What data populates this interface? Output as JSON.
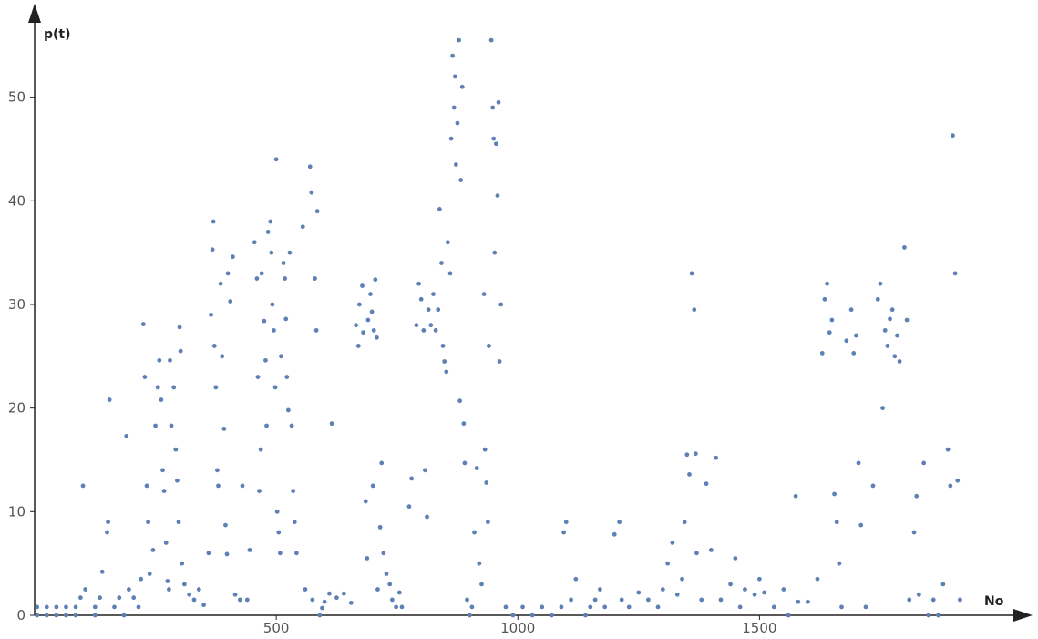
{
  "chart_data": {
    "type": "scatter",
    "x_label": "No",
    "y_label": "p(t)",
    "color": "#5e81b5",
    "xlim": [
      0,
      2050
    ],
    "ylim": [
      0,
      58.5
    ],
    "xticks": [
      500,
      1000,
      1500
    ],
    "yticks": [
      0,
      10,
      20,
      30,
      40,
      50
    ],
    "x": [
      5,
      5,
      25,
      25,
      45,
      45,
      65,
      65,
      85,
      85,
      95,
      100,
      105,
      125,
      125,
      135,
      140,
      150,
      152,
      155,
      165,
      175,
      185,
      190,
      195,
      205,
      215,
      220,
      225,
      228,
      232,
      235,
      238,
      245,
      250,
      255,
      258,
      262,
      265,
      268,
      272,
      275,
      278,
      280,
      283,
      288,
      292,
      295,
      298,
      300,
      302,
      305,
      310,
      320,
      330,
      340,
      350,
      360,
      365,
      368,
      370,
      372,
      375,
      378,
      380,
      385,
      388,
      392,
      395,
      398,
      400,
      405,
      410,
      415,
      425,
      430,
      440,
      445,
      455,
      460,
      462,
      465,
      468,
      470,
      475,
      478,
      480,
      483,
      488,
      490,
      492,
      495,
      498,
      500,
      502,
      505,
      508,
      510,
      515,
      518,
      520,
      522,
      525,
      528,
      532,
      535,
      538,
      542,
      555,
      560,
      570,
      573,
      575,
      580,
      583,
      585,
      590,
      595,
      600,
      610,
      615,
      625,
      640,
      655,
      665,
      670,
      672,
      678,
      680,
      685,
      688,
      690,
      695,
      698,
      700,
      702,
      705,
      708,
      710,
      715,
      718,
      722,
      728,
      735,
      740,
      748,
      755,
      760,
      775,
      780,
      790,
      795,
      800,
      805,
      808,
      812,
      815,
      820,
      825,
      830,
      835,
      838,
      842,
      845,
      848,
      852,
      855,
      860,
      862,
      865,
      868,
      870,
      872,
      875,
      878,
      880,
      882,
      885,
      888,
      890,
      895,
      900,
      905,
      910,
      915,
      920,
      925,
      930,
      932,
      935,
      938,
      940,
      945,
      948,
      950,
      952,
      955,
      958,
      960,
      962,
      965,
      975,
      990,
      1010,
      1030,
      1050,
      1070,
      1090,
      1095,
      1100,
      1110,
      1120,
      1140,
      1150,
      1160,
      1170,
      1180,
      1200,
      1210,
      1215,
      1230,
      1250,
      1270,
      1290,
      1300,
      1310,
      1320,
      1330,
      1340,
      1345,
      1350,
      1355,
      1360,
      1365,
      1368,
      1370,
      1380,
      1390,
      1400,
      1410,
      1420,
      1440,
      1450,
      1460,
      1470,
      1490,
      1500,
      1510,
      1530,
      1550,
      1560,
      1575,
      1580,
      1600,
      1620,
      1630,
      1635,
      1640,
      1645,
      1650,
      1655,
      1660,
      1665,
      1670,
      1680,
      1690,
      1695,
      1700,
      1705,
      1710,
      1720,
      1735,
      1745,
      1750,
      1755,
      1760,
      1765,
      1770,
      1775,
      1780,
      1785,
      1790,
      1800,
      1805,
      1810,
      1820,
      1825,
      1830,
      1840,
      1850,
      1860,
      1870,
      1880,
      1890,
      1895,
      1900,
      1905,
      1910,
      1915
    ],
    "values": [
      0,
      0.8,
      0,
      0.8,
      0,
      0.8,
      0,
      0.8,
      0,
      0.8,
      1.7,
      12.5,
      2.5,
      0,
      0.8,
      1.7,
      4.2,
      8.0,
      9.0,
      20.8,
      0.8,
      1.7,
      0,
      17.3,
      2.5,
      1.7,
      0.8,
      3.5,
      28.1,
      23,
      12.5,
      9,
      4,
      6.3,
      18.3,
      22,
      24.6,
      20.8,
      14,
      12,
      7,
      3.3,
      2.5,
      24.6,
      18.3,
      22,
      16,
      13,
      9,
      27.8,
      25.5,
      5,
      3,
      2,
      1.5,
      2.5,
      1,
      6,
      29,
      35.3,
      38,
      26,
      22,
      14,
      12.5,
      32,
      25,
      18,
      8.7,
      5.9,
      33,
      30.3,
      34.6,
      2,
      1.5,
      12.5,
      1.5,
      6.3,
      36,
      32.5,
      23,
      12,
      16,
      33,
      28.4,
      24.6,
      18.3,
      37,
      38,
      35,
      30,
      27.5,
      22,
      44,
      10,
      8,
      6,
      25,
      34,
      32.5,
      28.6,
      23,
      19.8,
      35,
      18.3,
      12,
      9,
      6,
      37.5,
      2.5,
      43.3,
      40.8,
      1.5,
      32.5,
      27.5,
      39,
      0,
      0.7,
      1.3,
      2.1,
      18.5,
      1.7,
      2.1,
      1.2,
      28,
      26,
      30,
      31.8,
      27.3,
      11,
      5.5,
      28.5,
      31,
      29.3,
      12.5,
      27.5,
      32.4,
      26.8,
      2.5,
      8.5,
      14.7,
      6,
      4,
      3,
      1.5,
      0.8,
      2.2,
      0.8,
      10.5,
      13.2,
      28,
      32,
      30.5,
      27.5,
      14,
      9.5,
      29.5,
      28,
      31,
      27.5,
      29.5,
      39.2,
      34,
      26,
      24.5,
      23.5,
      36,
      33,
      46,
      54,
      49,
      52,
      43.5,
      47.5,
      55.5,
      20.7,
      42,
      51,
      18.5,
      14.7,
      1.5,
      0,
      0.8,
      8,
      14.2,
      5,
      3,
      31,
      16,
      12.8,
      9,
      26,
      55.5,
      49,
      46,
      35,
      45.5,
      40.5,
      49.5,
      24.5,
      30,
      0.8,
      0,
      0.8,
      0,
      0.8,
      0,
      0.8,
      8,
      9,
      1.5,
      3.5,
      0,
      0.8,
      1.5,
      2.5,
      0.8,
      7.8,
      9,
      1.5,
      0.8,
      2.2,
      1.5,
      0.8,
      2.5,
      5,
      7,
      2,
      3.5,
      9,
      15.5,
      13.6,
      33,
      29.5,
      15.6,
      6,
      1.5,
      12.7,
      6.3,
      15.2,
      1.5,
      3,
      5.5,
      0.8,
      2.5,
      2,
      3.5,
      2.2,
      0.8,
      2.5,
      0,
      11.5,
      1.3,
      1.3,
      3.5,
      25.3,
      30.5,
      32,
      27.3,
      28.5,
      11.7,
      9,
      5,
      0.8,
      26.5,
      29.5,
      25.3,
      27,
      14.7,
      8.7,
      0.8,
      12.5,
      30.5,
      32,
      20,
      27.5,
      26,
      28.6,
      29.5,
      25,
      27,
      24.5,
      35.5,
      28.5,
      1.5,
      8,
      11.5,
      2,
      14.7,
      0,
      1.5,
      0,
      3,
      16,
      12.5,
      46.3,
      33,
      13,
      1.5
    ]
  }
}
